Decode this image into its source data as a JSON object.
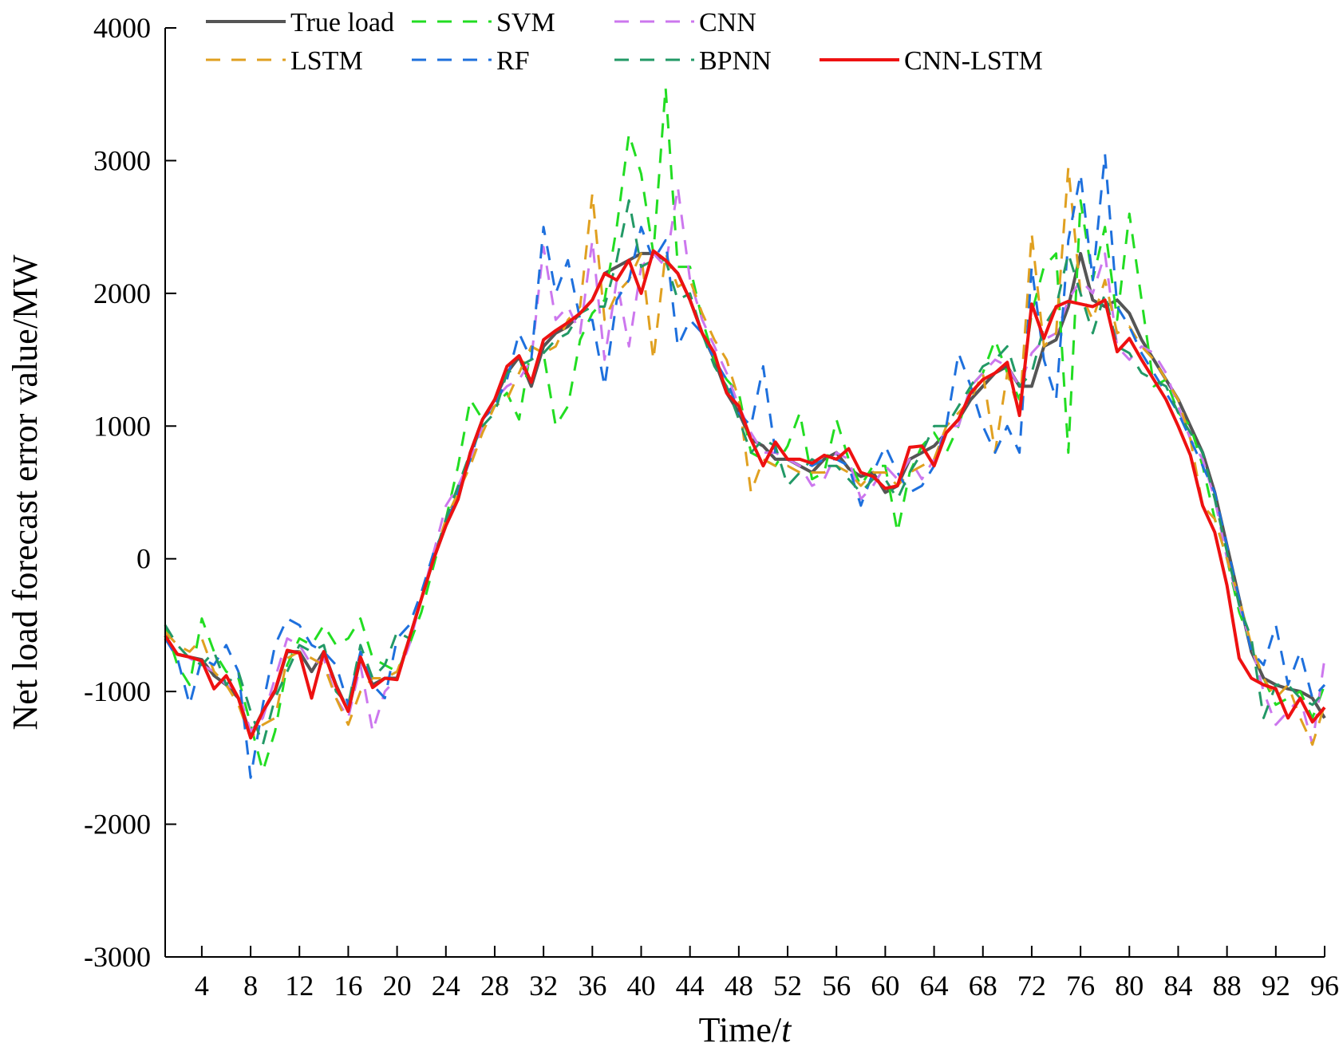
{
  "chart_data": {
    "type": "line",
    "title": "",
    "xlabel_prefix": "Time/",
    "xlabel_var": "t",
    "ylabel": "Net load forecast error value/MW",
    "xlim": [
      1,
      96
    ],
    "ylim": [
      -3000,
      4000
    ],
    "x_ticks": [
      4,
      8,
      12,
      16,
      20,
      24,
      28,
      32,
      36,
      40,
      44,
      48,
      52,
      56,
      60,
      64,
      68,
      72,
      76,
      80,
      84,
      88,
      92,
      96
    ],
    "y_ticks": [
      -3000,
      -2000,
      -1000,
      0,
      1000,
      2000,
      3000,
      4000
    ],
    "grid": false,
    "legend_position": "top-left",
    "x": [
      1,
      2,
      3,
      4,
      5,
      6,
      7,
      8,
      9,
      10,
      11,
      12,
      13,
      14,
      15,
      16,
      17,
      18,
      19,
      20,
      21,
      22,
      23,
      24,
      25,
      26,
      27,
      28,
      29,
      30,
      31,
      32,
      33,
      34,
      35,
      36,
      37,
      38,
      39,
      40,
      41,
      42,
      43,
      44,
      45,
      46,
      47,
      48,
      49,
      50,
      51,
      52,
      53,
      54,
      55,
      56,
      57,
      58,
      59,
      60,
      61,
      62,
      63,
      64,
      65,
      66,
      67,
      68,
      69,
      70,
      71,
      72,
      73,
      74,
      75,
      76,
      77,
      78,
      79,
      80,
      81,
      82,
      83,
      84,
      85,
      86,
      87,
      88,
      89,
      90,
      91,
      92,
      93,
      94,
      95,
      96
    ],
    "series": [
      {
        "name": "True load",
        "color": "#555555",
        "dash": "solid",
        "width": 4,
        "values": [
          -600,
          -720,
          -740,
          -760,
          -880,
          -950,
          -1050,
          -1330,
          -1150,
          -1000,
          -700,
          -700,
          -850,
          -700,
          -950,
          -1150,
          -750,
          -950,
          -900,
          -900,
          -600,
          -300,
          0,
          250,
          450,
          800,
          1050,
          1200,
          1400,
          1520,
          1300,
          1600,
          1700,
          1750,
          1850,
          1950,
          2150,
          2200,
          2250,
          2300,
          2300,
          2250,
          2150,
          1950,
          1700,
          1500,
          1250,
          1100,
          900,
          850,
          750,
          750,
          700,
          650,
          750,
          800,
          680,
          620,
          650,
          500,
          550,
          750,
          800,
          850,
          950,
          1050,
          1200,
          1300,
          1400,
          1450,
          1300,
          1300,
          1600,
          1650,
          1900,
          2300,
          1950,
          1900,
          1950,
          1850,
          1650,
          1500,
          1350,
          1200,
          1000,
          800,
          500,
          100,
          -300,
          -700,
          -900,
          -950,
          -980,
          -1000,
          -1050,
          -1200
        ]
      },
      {
        "name": "SVM",
        "color": "#22dd22",
        "dash": "18,14",
        "width": 3,
        "values": [
          -500,
          -800,
          -950,
          -450,
          -700,
          -850,
          -900,
          -1250,
          -1600,
          -1300,
          -800,
          -600,
          -650,
          -500,
          -650,
          -600,
          -450,
          -750,
          -800,
          -850,
          -650,
          -400,
          -50,
          300,
          700,
          1200,
          1050,
          1150,
          1250,
          1050,
          1600,
          1550,
          1000,
          1150,
          1650,
          1850,
          1950,
          2500,
          3200,
          2900,
          2300,
          3550,
          2200,
          2200,
          1800,
          1500,
          1350,
          1250,
          800,
          750,
          700,
          850,
          1100,
          600,
          650,
          1050,
          750,
          550,
          700,
          700,
          200,
          650,
          850,
          950,
          800,
          1000,
          1300,
          1400,
          1650,
          1400,
          1200,
          1850,
          2200,
          2300,
          800,
          2700,
          2100,
          2500,
          1800,
          2600,
          1950,
          1300,
          1350,
          1100,
          1000,
          700,
          300,
          0,
          -400,
          -650,
          -900,
          -1100,
          -1050,
          -1000,
          -1200,
          -950
        ]
      },
      {
        "name": "CNN",
        "color": "#cc77ee",
        "dash": "18,14",
        "width": 3,
        "values": [
          -550,
          -650,
          -750,
          -800,
          -850,
          -950,
          -1000,
          -1300,
          -1200,
          -900,
          -600,
          -650,
          -800,
          -750,
          -1050,
          -1200,
          -800,
          -1300,
          -1000,
          -900,
          -650,
          -300,
          50,
          400,
          550,
          750,
          1000,
          1200,
          1300,
          1350,
          1500,
          2350,
          1800,
          1900,
          1700,
          2400,
          1500,
          2100,
          1600,
          2200,
          2300,
          2200,
          2800,
          2100,
          1800,
          1600,
          1400,
          1150,
          950,
          800,
          800,
          750,
          700,
          550,
          600,
          800,
          750,
          450,
          550,
          700,
          600,
          750,
          600,
          750,
          1000,
          1000,
          1300,
          1400,
          1500,
          1450,
          1300,
          1550,
          1650,
          1700,
          1950,
          2100,
          2000,
          2300,
          1600,
          1500,
          1600,
          1550,
          1400,
          1150,
          900,
          750,
          450,
          0,
          -350,
          -650,
          -1000,
          -1250,
          -1150,
          -1050,
          -1400,
          -750
        ]
      },
      {
        "name": "LSTM",
        "color": "#e0a020",
        "dash": "18,14",
        "width": 3,
        "values": [
          -550,
          -650,
          -700,
          -600,
          -850,
          -950,
          -1100,
          -1350,
          -1250,
          -1200,
          -750,
          -700,
          -750,
          -800,
          -1050,
          -1250,
          -1000,
          -900,
          -900,
          -850,
          -600,
          -300,
          0,
          300,
          500,
          700,
          950,
          1150,
          1200,
          1400,
          1600,
          1550,
          1600,
          1800,
          1900,
          2750,
          1800,
          2000,
          2100,
          2300,
          1500,
          2300,
          2050,
          2100,
          1850,
          1650,
          1500,
          1200,
          500,
          750,
          700,
          700,
          650,
          650,
          650,
          700,
          650,
          550,
          650,
          650,
          550,
          650,
          700,
          750,
          1000,
          1100,
          1200,
          1400,
          800,
          1400,
          1100,
          2450,
          1600,
          1700,
          2950,
          2000,
          1800,
          2100,
          1700,
          1750,
          1600,
          1500,
          1350,
          1200,
          900,
          400,
          300,
          0,
          -300,
          -650,
          -900,
          -1050,
          -950,
          -1200,
          -1400,
          -1100
        ]
      },
      {
        "name": "RF",
        "color": "#1e70dd",
        "dash": "18,14",
        "width": 3,
        "values": [
          -600,
          -750,
          -1100,
          -750,
          -800,
          -650,
          -850,
          -1650,
          -1100,
          -650,
          -450,
          -500,
          -650,
          -700,
          -800,
          -1100,
          -700,
          -950,
          -1050,
          -600,
          -500,
          -250,
          50,
          250,
          500,
          750,
          1050,
          1150,
          1350,
          1700,
          1500,
          2500,
          2000,
          2250,
          1800,
          1800,
          1300,
          1950,
          2100,
          2500,
          2250,
          2400,
          1600,
          1800,
          1700,
          1500,
          1350,
          1100,
          1000,
          1450,
          800,
          750,
          750,
          700,
          750,
          750,
          700,
          400,
          650,
          850,
          650,
          500,
          550,
          700,
          1000,
          1550,
          1300,
          1000,
          800,
          1000,
          800,
          2200,
          1500,
          1200,
          2400,
          2900,
          2100,
          3050,
          1900,
          1750,
          1550,
          1400,
          1250,
          1100,
          900,
          700,
          500,
          100,
          -300,
          -700,
          -800,
          -500,
          -950,
          -700,
          -1050,
          -950
        ]
      },
      {
        "name": "BPNN",
        "color": "#229966",
        "dash": "18,14",
        "width": 3,
        "values": [
          -500,
          -650,
          -750,
          -800,
          -700,
          -950,
          -850,
          -1150,
          -1400,
          -1050,
          -850,
          -650,
          -700,
          -650,
          -1000,
          -1100,
          -650,
          -900,
          -800,
          -550,
          -600,
          -300,
          0,
          300,
          550,
          800,
          1000,
          1100,
          1400,
          1450,
          1500,
          1550,
          1650,
          1700,
          1850,
          1900,
          1900,
          2250,
          2700,
          2200,
          2250,
          2250,
          1950,
          2000,
          1700,
          1450,
          1300,
          1050,
          800,
          900,
          850,
          550,
          650,
          750,
          700,
          700,
          600,
          500,
          600,
          600,
          450,
          650,
          800,
          1000,
          1000,
          1150,
          1300,
          1450,
          1500,
          1600,
          1300,
          1400,
          1750,
          1900,
          2300,
          2000,
          1700,
          2000,
          1600,
          1550,
          1400,
          1350,
          1300,
          1100,
          950,
          800,
          450,
          50,
          -350,
          -600,
          -1200,
          -950,
          -950,
          -1050,
          -1100,
          -1000
        ]
      },
      {
        "name": "CNN-LSTM",
        "color": "#ee1111",
        "dash": "solid",
        "width": 4,
        "values": [
          -580,
          -720,
          -740,
          -770,
          -980,
          -880,
          -1050,
          -1350,
          -1150,
          -990,
          -690,
          -710,
          -1050,
          -700,
          -960,
          -1150,
          -740,
          -970,
          -900,
          -910,
          -600,
          -300,
          0,
          250,
          450,
          800,
          1050,
          1200,
          1450,
          1530,
          1330,
          1650,
          1720,
          1780,
          1850,
          1950,
          2150,
          2100,
          2250,
          2000,
          2320,
          2250,
          2150,
          1950,
          1700,
          1550,
          1250,
          1150,
          900,
          700,
          880,
          750,
          750,
          720,
          780,
          750,
          830,
          650,
          620,
          530,
          550,
          840,
          850,
          700,
          950,
          1050,
          1250,
          1350,
          1400,
          1480,
          1080,
          1920,
          1660,
          1900,
          1940,
          1920,
          1900,
          1950,
          1560,
          1660,
          1500,
          1350,
          1200,
          1000,
          780,
          400,
          200,
          -200,
          -750,
          -900,
          -950,
          -980,
          -1200,
          -1050,
          -1230,
          -1120
        ]
      }
    ]
  }
}
